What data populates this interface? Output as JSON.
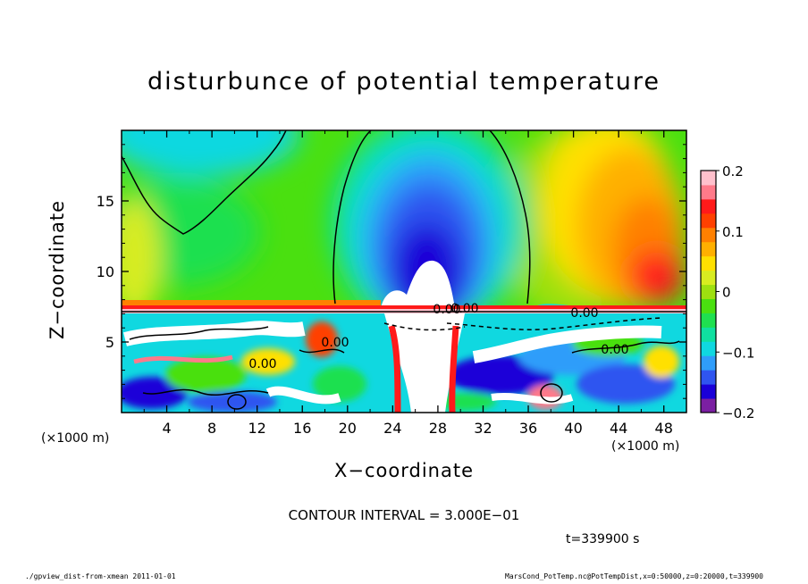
{
  "chart_data": {
    "type": "heatmap",
    "title": "disturbunce of potential temperature",
    "xlabel": "X−coordinate",
    "ylabel": "Z−coordinate",
    "x_unit_label": "(×1000 m)",
    "y_unit_label": "(×1000 m)",
    "x_ticks": [
      4,
      8,
      12,
      16,
      20,
      24,
      28,
      32,
      36,
      40,
      44,
      48
    ],
    "y_ticks": [
      5,
      10,
      15
    ],
    "xlim": [
      0,
      50
    ],
    "ylim": [
      0,
      20
    ],
    "colorbar": {
      "range": [
        -0.2,
        0.2
      ],
      "ticks": [
        "0.2",
        "0.1",
        "0",
        "−0.1",
        "−0.2"
      ],
      "colors": [
        "#7b1fa2",
        "#1a00d8",
        "#2f55f0",
        "#2f9dfa",
        "#10d8e0",
        "#10e0a0",
        "#1fe050",
        "#4ae010",
        "#9ee010",
        "#d8ec20",
        "#ffe000",
        "#ffb000",
        "#ff8000",
        "#ff4000",
        "#ff1a1a",
        "#ff7a8a",
        "#ffc0cc"
      ]
    },
    "contour_labels": [
      "0.00",
      "0.00",
      "0.00",
      "0.00",
      "0.00",
      "0.00"
    ],
    "contour_interval_text": "CONTOUR INTERVAL = 3.000E−01",
    "time_text": "t=339900 s"
  },
  "footer": {
    "left": "./gpview_dist-from-xmean  2011-01-01",
    "right": "MarsCond_PotTemp.nc@PotTempDist,x=0:50000,z=0:20000,t=339900"
  }
}
